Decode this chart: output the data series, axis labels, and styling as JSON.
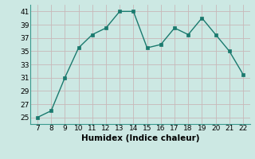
{
  "x": [
    7,
    8,
    9,
    10,
    11,
    12,
    13,
    14,
    15,
    16,
    17,
    18,
    19,
    20,
    21,
    22
  ],
  "y": [
    25,
    26,
    31,
    35.5,
    37.5,
    38.5,
    41,
    41,
    35.5,
    36,
    38.5,
    37.5,
    40,
    37.5,
    35,
    31.5
  ],
  "line_color": "#1a7a6e",
  "marker_color": "#1a7a6e",
  "bg_color": "#cce8e3",
  "grid_color": "#b8d8d4",
  "xlabel": "Humidex (Indice chaleur)",
  "xlabel_fontsize": 7.5,
  "xlim": [
    6.5,
    22.5
  ],
  "ylim": [
    24,
    42
  ],
  "yticks": [
    25,
    27,
    29,
    31,
    33,
    35,
    37,
    39,
    41
  ],
  "xticks": [
    7,
    8,
    9,
    10,
    11,
    12,
    13,
    14,
    15,
    16,
    17,
    18,
    19,
    20,
    21,
    22
  ],
  "tick_fontsize": 6.5
}
